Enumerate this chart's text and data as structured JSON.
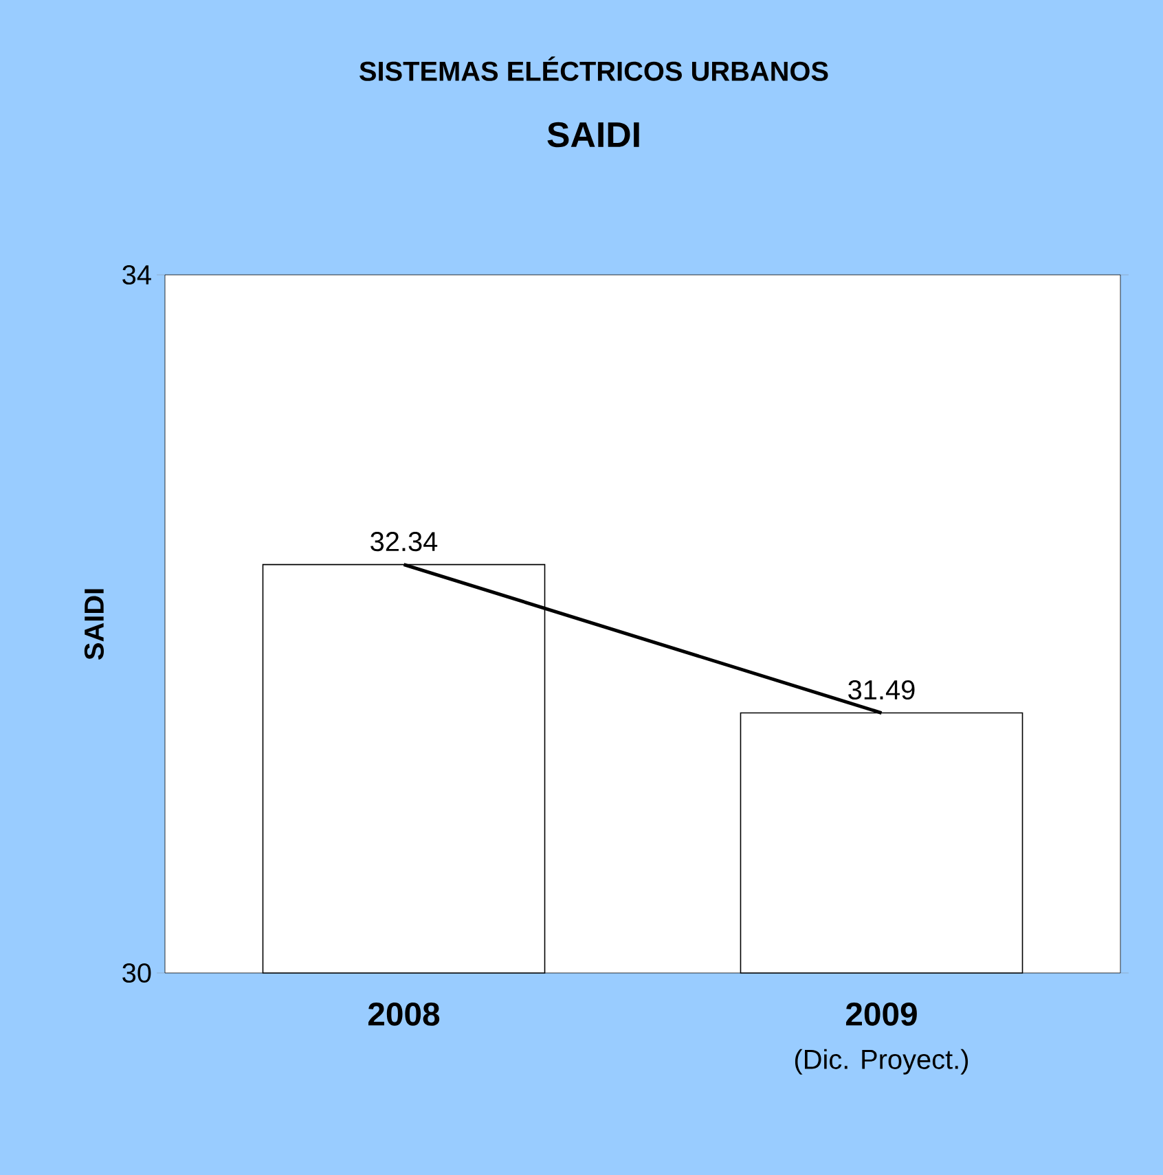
{
  "chart_data": {
    "type": "bar",
    "title": "SISTEMAS ELÉCTRICOS URBANOS",
    "subtitle": "SAIDI",
    "ylabel": "SAIDI",
    "categories": [
      "2008",
      "2009"
    ],
    "series": [
      {
        "color": "#ffffff",
        "values": [
          32.34,
          31.49
        ],
        "value_labels": [
          "32.34",
          "31.49"
        ]
      },
      {
        "type": "line",
        "color": "#000000",
        "values": [
          32.34,
          31.49
        ]
      }
    ],
    "ylim": [
      30,
      34
    ],
    "yticks": [
      30,
      34
    ],
    "grid": false,
    "marker": "none",
    "annotations": [
      "(Dic. Proyect.)"
    ]
  }
}
